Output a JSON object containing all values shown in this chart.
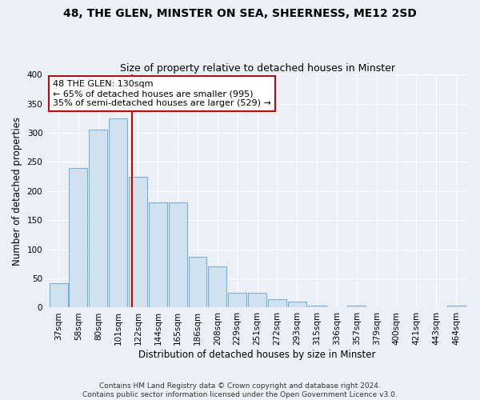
{
  "title1": "48, THE GLEN, MINSTER ON SEA, SHEERNESS, ME12 2SD",
  "title2": "Size of property relative to detached houses in Minster",
  "xlabel": "Distribution of detached houses by size in Minster",
  "ylabel": "Number of detached properties",
  "categories": [
    "37sqm",
    "58sqm",
    "80sqm",
    "101sqm",
    "122sqm",
    "144sqm",
    "165sqm",
    "186sqm",
    "208sqm",
    "229sqm",
    "251sqm",
    "272sqm",
    "293sqm",
    "315sqm",
    "336sqm",
    "357sqm",
    "379sqm",
    "400sqm",
    "421sqm",
    "443sqm",
    "464sqm"
  ],
  "values": [
    42,
    240,
    305,
    325,
    225,
    180,
    180,
    87,
    70,
    25,
    25,
    15,
    10,
    4,
    0,
    3,
    0,
    0,
    0,
    0,
    3
  ],
  "bar_color": "#cfe0ef",
  "bar_edgecolor": "#6aaed6",
  "vline_color": "#cc0000",
  "vline_bin_index": 4,
  "annotation_text": "48 THE GLEN: 130sqm\n← 65% of detached houses are smaller (995)\n35% of semi-detached houses are larger (529) →",
  "annotation_box_facecolor": "#ffffff",
  "annotation_box_edgecolor": "#cc0000",
  "ylim": [
    0,
    400
  ],
  "yticks": [
    0,
    50,
    100,
    150,
    200,
    250,
    300,
    350,
    400
  ],
  "footer": "Contains HM Land Registry data © Crown copyright and database right 2024.\nContains public sector information licensed under the Open Government Licence v3.0.",
  "background_color": "#eaf0f6",
  "grid_color": "#ffffff",
  "title_fontsize": 10,
  "subtitle_fontsize": 9,
  "tick_fontsize": 7.5,
  "label_fontsize": 8.5,
  "annotation_fontsize": 8,
  "footer_fontsize": 6.5
}
